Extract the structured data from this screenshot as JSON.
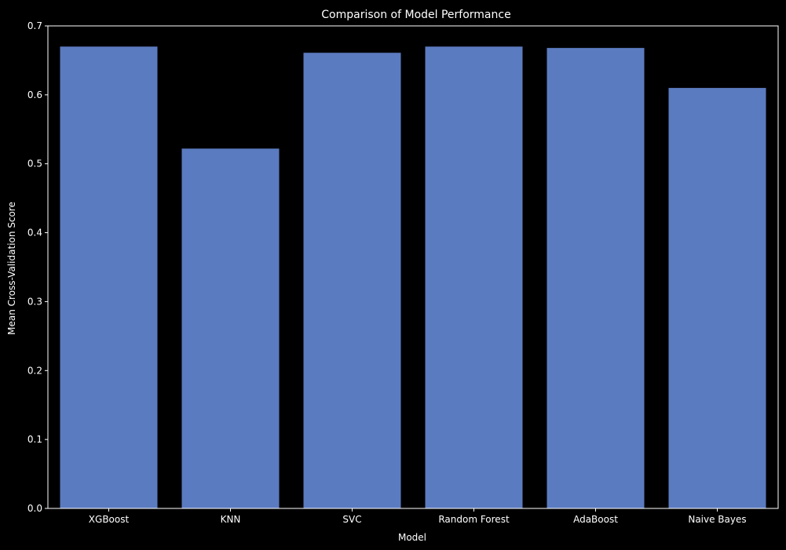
{
  "chart_data": {
    "type": "bar",
    "title": "Comparison of Model Performance",
    "xlabel": "Model",
    "ylabel": "Mean Cross-Validation Score",
    "categories": [
      "XGBoost",
      "KNN",
      "SVC",
      "Random Forest",
      "AdaBoost",
      "Naive Bayes"
    ],
    "values": [
      0.67,
      0.522,
      0.661,
      0.67,
      0.668,
      0.61
    ],
    "ylim": [
      0,
      0.7
    ],
    "yticks": [
      0.0,
      0.1,
      0.2,
      0.3,
      0.4,
      0.5,
      0.6,
      0.7
    ],
    "ytick_labels": [
      "0.0",
      "0.1",
      "0.2",
      "0.3",
      "0.4",
      "0.5",
      "0.6",
      "0.7"
    ],
    "grid": false,
    "colors": {
      "bar": "#5b7bc0",
      "background": "#000000",
      "axis": "#ffffff",
      "text": "#ffffff"
    }
  }
}
